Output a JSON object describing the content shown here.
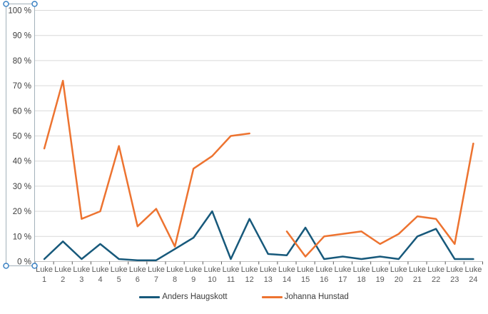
{
  "chart_data": {
    "type": "line",
    "title": "",
    "categories": [
      "Luke 1",
      "Luke 2",
      "Luke 3",
      "Luke 4",
      "Luke 5",
      "Luke 6",
      "Luke 7",
      "Luke 8",
      "Luke 9",
      "Luke 10",
      "Luke 11",
      "Luke 12",
      "Luke 13",
      "Luke 14",
      "Luke 15",
      "Luke 16",
      "Luke 17",
      "Luke 18",
      "Luke 19",
      "Luke 20",
      "Luke 21",
      "Luke 22",
      "Luke 23",
      "Luke 24"
    ],
    "series": [
      {
        "name": "Anders Haugskott",
        "color": "#17597b",
        "values": [
          1,
          8,
          1,
          7,
          1,
          0.5,
          0.5,
          5,
          9.5,
          20,
          1,
          17,
          3,
          2.5,
          13.5,
          1,
          2,
          1,
          2,
          1,
          10,
          13,
          1,
          1
        ]
      },
      {
        "name": "Johanna Hunstad",
        "color": "#ed7330",
        "values": [
          45,
          72,
          17,
          20,
          46,
          14,
          21,
          6,
          37,
          42,
          50,
          51,
          null,
          12,
          2,
          10,
          11,
          12,
          7,
          11,
          18,
          17,
          7,
          47
        ]
      }
    ],
    "ylim": [
      0,
      100
    ],
    "ytick_step": 10,
    "y_tick_labels": [
      "0 %",
      "10 %",
      "20 %",
      "30 %",
      "40 %",
      "50 %",
      "60 %",
      "70 %",
      "80 %",
      "90 %",
      "100 %"
    ],
    "grid": true,
    "legend_position": "bottom"
  },
  "selection": {
    "selected_element": "y-axis",
    "handle_fill": "#ffffff",
    "handle_ring": "#3b82c4",
    "border_color": "#a3b1ba"
  },
  "colors": {
    "gridline": "#d9d9d9",
    "x_axis_line": "#c0c0c0",
    "tick": "#595959",
    "y_axis_line": "#4d4d4d",
    "y_label": "#3d3d3d",
    "x_label": "#5a5a5a",
    "legend_text": "#3d3d3d",
    "background": "#ffffff"
  }
}
